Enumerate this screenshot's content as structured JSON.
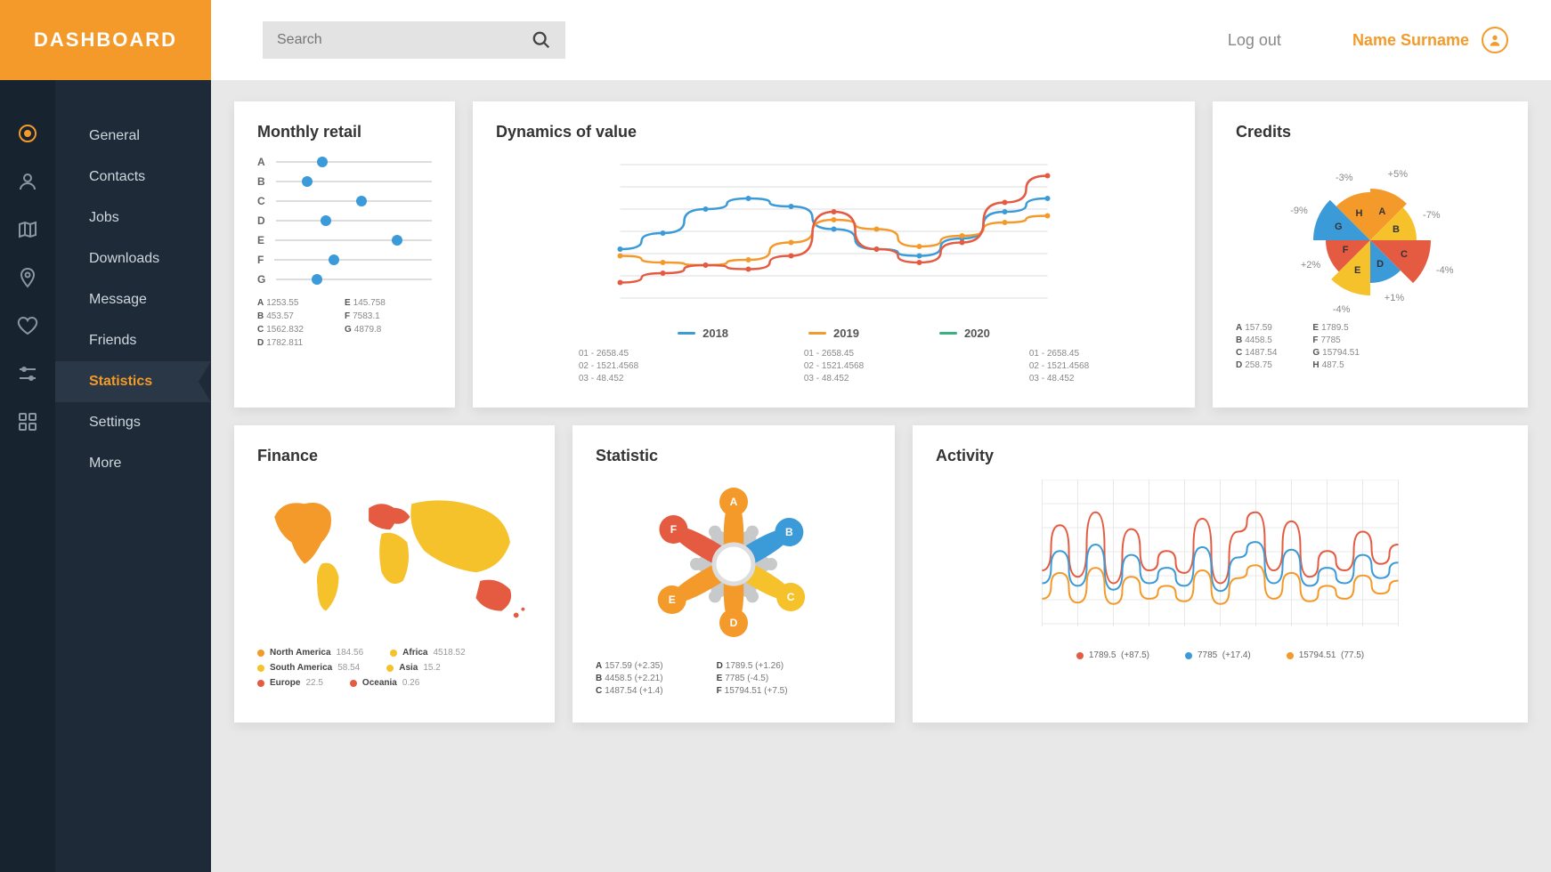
{
  "header": {
    "logo": "DASHBOARD",
    "search_placeholder": "Search",
    "logout": "Log out",
    "username": "Name Surname"
  },
  "colors": {
    "accent": "#f39a2b",
    "sidebar_bg": "#1e2a38",
    "rail_bg": "#182330",
    "blue": "#3b9ad8",
    "orange": "#f39a2b",
    "red": "#e45b41",
    "yellow": "#f5c22b",
    "grey": "#b9babb",
    "green": "#36b37e"
  },
  "nav": {
    "items": [
      {
        "label": "General",
        "icon": "target"
      },
      {
        "label": "Contacts",
        "icon": "user"
      },
      {
        "label": "Jobs",
        "icon": "map"
      },
      {
        "label": "Downloads",
        "icon": "pin"
      },
      {
        "label": "Message",
        "icon": "heart"
      },
      {
        "label": "Friends",
        "icon": "sliders"
      },
      {
        "label": "Statistics",
        "icon": "grid",
        "active": true
      },
      {
        "label": "Settings"
      },
      {
        "label": "More"
      }
    ]
  },
  "retail": {
    "title": "Monthly retail",
    "rows": [
      {
        "label": "A",
        "pos": 0.3
      },
      {
        "label": "B",
        "pos": 0.2
      },
      {
        "label": "C",
        "pos": 0.55
      },
      {
        "label": "D",
        "pos": 0.32
      },
      {
        "label": "E",
        "pos": 0.78
      },
      {
        "label": "F",
        "pos": 0.38
      },
      {
        "label": "G",
        "pos": 0.26
      }
    ],
    "legend": [
      {
        "k": "A",
        "v": "1253.55"
      },
      {
        "k": "E",
        "v": "145.758"
      },
      {
        "k": "B",
        "v": "453.57"
      },
      {
        "k": "F",
        "v": "7583.1"
      },
      {
        "k": "C",
        "v": "1562.832"
      },
      {
        "k": "G",
        "v": "4879.8"
      },
      {
        "k": "D",
        "v": "1782.811"
      }
    ]
  },
  "dynamics": {
    "title": "Dynamics of value",
    "xrange": [
      0,
      100
    ],
    "yrange": [
      0,
      100
    ],
    "series": [
      {
        "year": "2018",
        "color": "#3b9ad8",
        "points": [
          [
            0,
            40
          ],
          [
            10,
            52
          ],
          [
            20,
            70
          ],
          [
            30,
            78
          ],
          [
            40,
            72
          ],
          [
            50,
            55
          ],
          [
            60,
            40
          ],
          [
            70,
            35
          ],
          [
            80,
            48
          ],
          [
            90,
            68
          ],
          [
            100,
            78
          ]
        ]
      },
      {
        "year": "2019",
        "color": "#f39a2b",
        "points": [
          [
            0,
            35
          ],
          [
            10,
            30
          ],
          [
            20,
            28
          ],
          [
            30,
            32
          ],
          [
            40,
            45
          ],
          [
            50,
            62
          ],
          [
            60,
            55
          ],
          [
            70,
            42
          ],
          [
            80,
            50
          ],
          [
            90,
            60
          ],
          [
            100,
            65
          ]
        ]
      },
      {
        "year": "2020",
        "color": "#e45b41",
        "points": [
          [
            0,
            15
          ],
          [
            10,
            22
          ],
          [
            20,
            28
          ],
          [
            30,
            25
          ],
          [
            40,
            35
          ],
          [
            50,
            68
          ],
          [
            60,
            40
          ],
          [
            70,
            30
          ],
          [
            80,
            45
          ],
          [
            90,
            75
          ],
          [
            100,
            95
          ]
        ]
      }
    ],
    "green_marker": {
      "color": "#36b37e",
      "year": "2020"
    },
    "stats_cols": [
      [
        "01 - 2658.45",
        "02 - 1521.4568",
        "03 - 48.452"
      ],
      [
        "01 - 2658.45",
        "02 - 1521.4568",
        "03 - 48.452"
      ],
      [
        "01 - 2658.45",
        "02 - 1521.4568",
        "03 - 48.452"
      ]
    ]
  },
  "credits": {
    "title": "Credits",
    "slices": [
      {
        "label": "A",
        "color": "#f39a2b",
        "pct": "+5%",
        "angle_start": -90,
        "angle_end": -45,
        "radius": 58
      },
      {
        "label": "B",
        "color": "#f5c22b",
        "pct": "-7%",
        "angle_start": -45,
        "angle_end": 0,
        "radius": 52
      },
      {
        "label": "C",
        "color": "#e45b41",
        "pct": "-4%",
        "angle_start": 0,
        "angle_end": 45,
        "radius": 68
      },
      {
        "label": "D",
        "color": "#3b9ad8",
        "pct": "+1%",
        "angle_start": 45,
        "angle_end": 90,
        "radius": 48
      },
      {
        "label": "E",
        "color": "#f5c22b",
        "pct": "-4%",
        "angle_start": 90,
        "angle_end": 135,
        "radius": 62
      },
      {
        "label": "F",
        "color": "#e45b41",
        "pct": "+2%",
        "angle_start": 135,
        "angle_end": 180,
        "radius": 50
      },
      {
        "label": "G",
        "color": "#3b9ad8",
        "pct": "-9%",
        "angle_start": 180,
        "angle_end": 225,
        "radius": 64
      },
      {
        "label": "H",
        "color": "#f39a2b",
        "pct": "-3%",
        "angle_start": 225,
        "angle_end": 270,
        "radius": 54
      }
    ],
    "legend_left": [
      {
        "k": "A",
        "v": "157.59"
      },
      {
        "k": "B",
        "v": "4458.5"
      },
      {
        "k": "C",
        "v": "1487.54"
      },
      {
        "k": "D",
        "v": "258.75"
      }
    ],
    "legend_right": [
      {
        "k": "E",
        "v": "1789.5"
      },
      {
        "k": "F",
        "v": "7785"
      },
      {
        "k": "G",
        "v": "15794.51"
      },
      {
        "k": "H",
        "v": "487.5"
      }
    ]
  },
  "finance": {
    "title": "Finance",
    "regions": [
      {
        "name": "North America",
        "value": "184.56",
        "color": "#f39a2b"
      },
      {
        "name": "Africa",
        "value": "4518.52",
        "color": "#f5c22b"
      },
      {
        "name": "South America",
        "value": "58.54",
        "color": "#f5c22b"
      },
      {
        "name": "Asia",
        "value": "15.2",
        "color": "#f5c22b"
      },
      {
        "name": "Europe",
        "value": "22.5",
        "color": "#e45b41"
      },
      {
        "name": "Oceania",
        "value": "0.26",
        "color": "#e45b41"
      }
    ]
  },
  "statistic": {
    "title": "Statistic",
    "petals": [
      {
        "label": "A",
        "color": "#f39a2b",
        "angle": -90,
        "len": 70
      },
      {
        "label": "B",
        "color": "#3b9ad8",
        "angle": -30,
        "len": 72
      },
      {
        "label": "C",
        "color": "#f5c22b",
        "angle": 30,
        "len": 74
      },
      {
        "label": "D",
        "color": "#f39a2b",
        "angle": 90,
        "len": 66
      },
      {
        "label": "E",
        "color": "#f39a2b",
        "angle": 150,
        "len": 80
      },
      {
        "label": "F",
        "color": "#e45b41",
        "angle": -150,
        "len": 78
      }
    ],
    "grey_petals": [
      -60,
      0,
      60,
      120,
      180,
      -120
    ],
    "legend_left": [
      {
        "k": "A",
        "v": "157.59 (+2.35)"
      },
      {
        "k": "B",
        "v": "4458.5 (+2.21)"
      },
      {
        "k": "C",
        "v": "1487.54 (+1.4)"
      }
    ],
    "legend_right": [
      {
        "k": "D",
        "v": "1789.5 (+1.26)"
      },
      {
        "k": "E",
        "v": "7785 (-4.5)"
      },
      {
        "k": "F",
        "v": "15794.51 (+7.5)"
      }
    ]
  },
  "activity": {
    "title": "Activity",
    "xrange": [
      0,
      100
    ],
    "yrange": [
      0,
      100
    ],
    "grid_x": 10,
    "grid_y": 6,
    "series": [
      {
        "color": "#e45b41",
        "value": "1789.5",
        "delta": "(+87.5)",
        "points": [
          [
            0,
            40
          ],
          [
            5,
            75
          ],
          [
            10,
            35
          ],
          [
            15,
            85
          ],
          [
            20,
            30
          ],
          [
            25,
            72
          ],
          [
            30,
            40
          ],
          [
            35,
            55
          ],
          [
            40,
            38
          ],
          [
            45,
            80
          ],
          [
            50,
            30
          ],
          [
            55,
            70
          ],
          [
            60,
            85
          ],
          [
            65,
            40
          ],
          [
            70,
            78
          ],
          [
            75,
            35
          ],
          [
            80,
            55
          ],
          [
            85,
            40
          ],
          [
            90,
            70
          ],
          [
            95,
            45
          ],
          [
            100,
            60
          ]
        ]
      },
      {
        "color": "#3b9ad8",
        "value": "7785",
        "delta": "(+17.4)",
        "points": [
          [
            0,
            30
          ],
          [
            5,
            55
          ],
          [
            10,
            28
          ],
          [
            15,
            60
          ],
          [
            20,
            25
          ],
          [
            25,
            52
          ],
          [
            30,
            30
          ],
          [
            35,
            42
          ],
          [
            40,
            28
          ],
          [
            45,
            58
          ],
          [
            50,
            24
          ],
          [
            55,
            50
          ],
          [
            60,
            62
          ],
          [
            65,
            30
          ],
          [
            70,
            56
          ],
          [
            75,
            28
          ],
          [
            80,
            42
          ],
          [
            85,
            30
          ],
          [
            90,
            52
          ],
          [
            95,
            34
          ],
          [
            100,
            46
          ]
        ]
      },
      {
        "color": "#f39a2b",
        "value": "15794.51",
        "delta": "(77.5)",
        "points": [
          [
            0,
            18
          ],
          [
            5,
            38
          ],
          [
            10,
            15
          ],
          [
            15,
            42
          ],
          [
            20,
            14
          ],
          [
            25,
            35
          ],
          [
            30,
            18
          ],
          [
            35,
            28
          ],
          [
            40,
            16
          ],
          [
            45,
            40
          ],
          [
            50,
            14
          ],
          [
            55,
            34
          ],
          [
            60,
            44
          ],
          [
            65,
            18
          ],
          [
            70,
            38
          ],
          [
            75,
            16
          ],
          [
            80,
            28
          ],
          [
            85,
            18
          ],
          [
            90,
            36
          ],
          [
            95,
            22
          ],
          [
            100,
            32
          ]
        ]
      }
    ]
  }
}
